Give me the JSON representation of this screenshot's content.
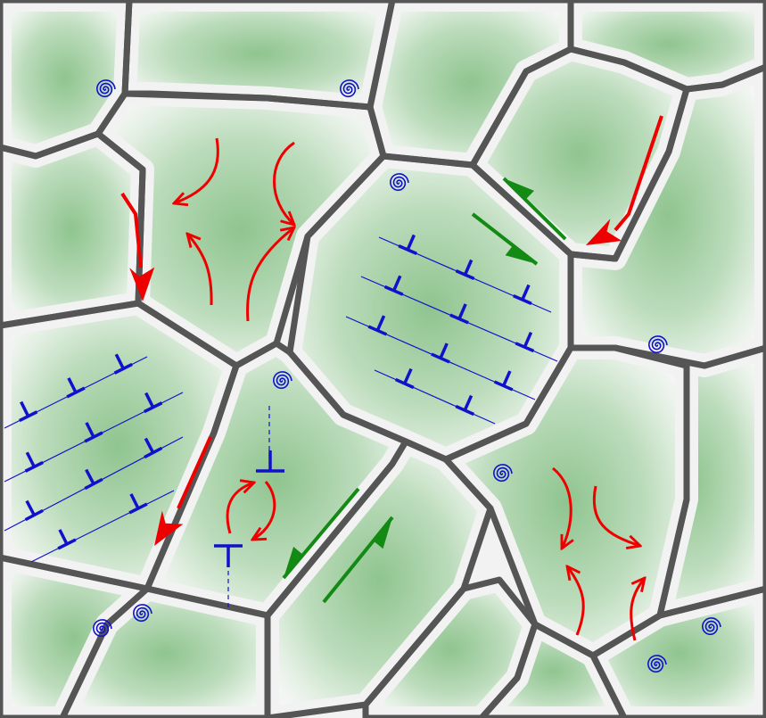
{
  "diagram": {
    "description_free": true,
    "colors": {
      "grain_fill": "#cfe6cf",
      "grain_center": "#9fcd9f",
      "grain_boundary": "#555555",
      "boundary_halo": "#f2f2f2",
      "red_arrow": "#ee0000",
      "green_arrow": "#138a13",
      "dislocation": "#1111cc",
      "spiral": "#1111cc"
    },
    "icons": {
      "spiral": "spiral-icon",
      "dislocation": "dislocation-symbol-icon",
      "red_arrow": "red-arrow-icon",
      "green_arrow": "green-arrow-icon",
      "curved_arrow": "curved-arrow-icon"
    }
  }
}
